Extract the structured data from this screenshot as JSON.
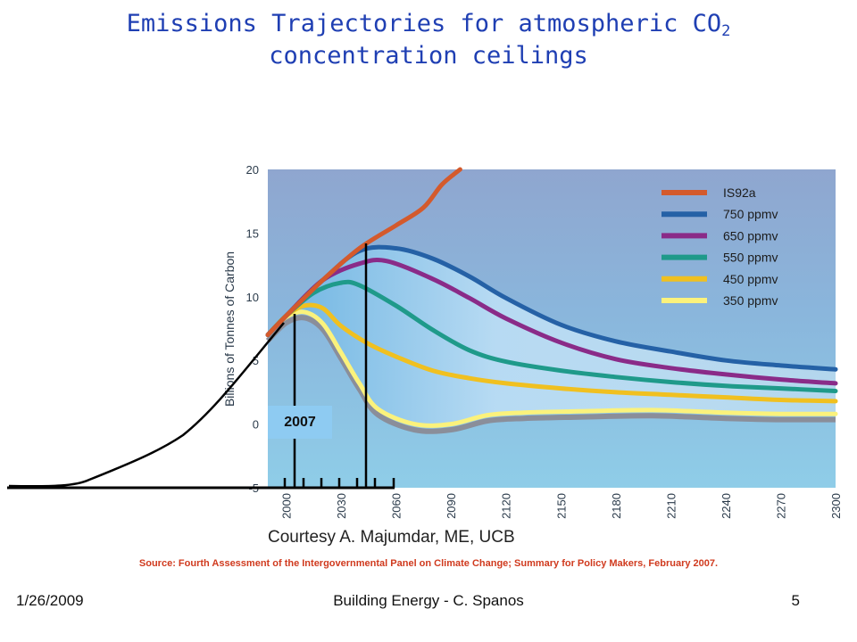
{
  "title": {
    "line1_prefix": "Emissions Trajectories for atmospheric CO",
    "line1_sub": "2",
    "line2": "concentration ceilings"
  },
  "courtesy": "Courtesy A. Majumdar, ME, UCB",
  "source": "Source: Fourth Assessment of the Intergovernmental Panel on Climate Change; Summary for Policy Makers, February 2007.",
  "footer": {
    "date": "1/26/2009",
    "center": "Building Energy - C. Spanos",
    "page": "5"
  },
  "annotation": {
    "label": "2007"
  },
  "chart_data": {
    "type": "line",
    "ylabel": "Billions of Tonnes of Carbon",
    "xlabel": "",
    "xlim": [
      1990,
      2300
    ],
    "ylim": [
      -5,
      20
    ],
    "x_ticks": [
      2000,
      2030,
      2060,
      2090,
      2120,
      2150,
      2180,
      2210,
      2240,
      2270,
      2300
    ],
    "y_ticks": [
      -5,
      0,
      5,
      10,
      15,
      20
    ],
    "legend_position": "top-right",
    "series": [
      {
        "name": "IS92a",
        "color": "#d45a2c",
        "x": [
          1990,
          2000,
          2020,
          2040,
          2060,
          2075,
          2085,
          2095
        ],
        "y": [
          7.0,
          8.5,
          11.3,
          13.8,
          15.6,
          17.0,
          18.8,
          20.0
        ]
      },
      {
        "name": "750 ppmv",
        "color": "#2561a6",
        "x": [
          1990,
          2000,
          2020,
          2040,
          2060,
          2080,
          2100,
          2120,
          2150,
          2180,
          2210,
          2240,
          2270,
          2300
        ],
        "y": [
          7.0,
          8.5,
          11.3,
          13.6,
          13.8,
          13.0,
          11.6,
          9.9,
          7.8,
          6.5,
          5.7,
          5.0,
          4.6,
          4.3
        ]
      },
      {
        "name": "650 ppmv",
        "color": "#8a2b88",
        "x": [
          1990,
          2000,
          2020,
          2040,
          2055,
          2080,
          2100,
          2120,
          2150,
          2180,
          2210,
          2240,
          2270,
          2300
        ],
        "y": [
          7.0,
          8.5,
          11.3,
          12.6,
          12.8,
          11.4,
          9.9,
          8.3,
          6.4,
          5.1,
          4.4,
          3.9,
          3.5,
          3.2
        ]
      },
      {
        "name": "550 ppmv",
        "color": "#1f9a8a",
        "x": [
          1990,
          2000,
          2015,
          2030,
          2040,
          2060,
          2080,
          2100,
          2120,
          2150,
          2180,
          2210,
          2240,
          2270,
          2300
        ],
        "y": [
          7.0,
          8.5,
          10.3,
          11.1,
          10.9,
          9.3,
          7.4,
          5.8,
          4.9,
          4.2,
          3.7,
          3.3,
          3.0,
          2.8,
          2.6
        ]
      },
      {
        "name": "450 ppmv",
        "color": "#f0c020",
        "x": [
          1990,
          2000,
          2010,
          2020,
          2030,
          2045,
          2060,
          2080,
          2100,
          2120,
          2150,
          2180,
          2210,
          2240,
          2270,
          2300
        ],
        "y": [
          7.0,
          8.5,
          9.3,
          9.1,
          7.7,
          6.3,
          5.3,
          4.2,
          3.6,
          3.2,
          2.8,
          2.5,
          2.3,
          2.1,
          1.9,
          1.8
        ]
      },
      {
        "name": "350 ppmv",
        "color": "#fbf27c",
        "x": [
          1990,
          2000,
          2010,
          2020,
          2030,
          2040,
          2050,
          2070,
          2090,
          2110,
          2130,
          2160,
          2200,
          2240,
          2270,
          2300
        ],
        "y": [
          7.0,
          8.4,
          8.8,
          7.9,
          5.6,
          3.2,
          1.2,
          0.0,
          0.0,
          0.7,
          0.9,
          1.0,
          1.1,
          0.9,
          0.8,
          0.8
        ]
      }
    ]
  }
}
